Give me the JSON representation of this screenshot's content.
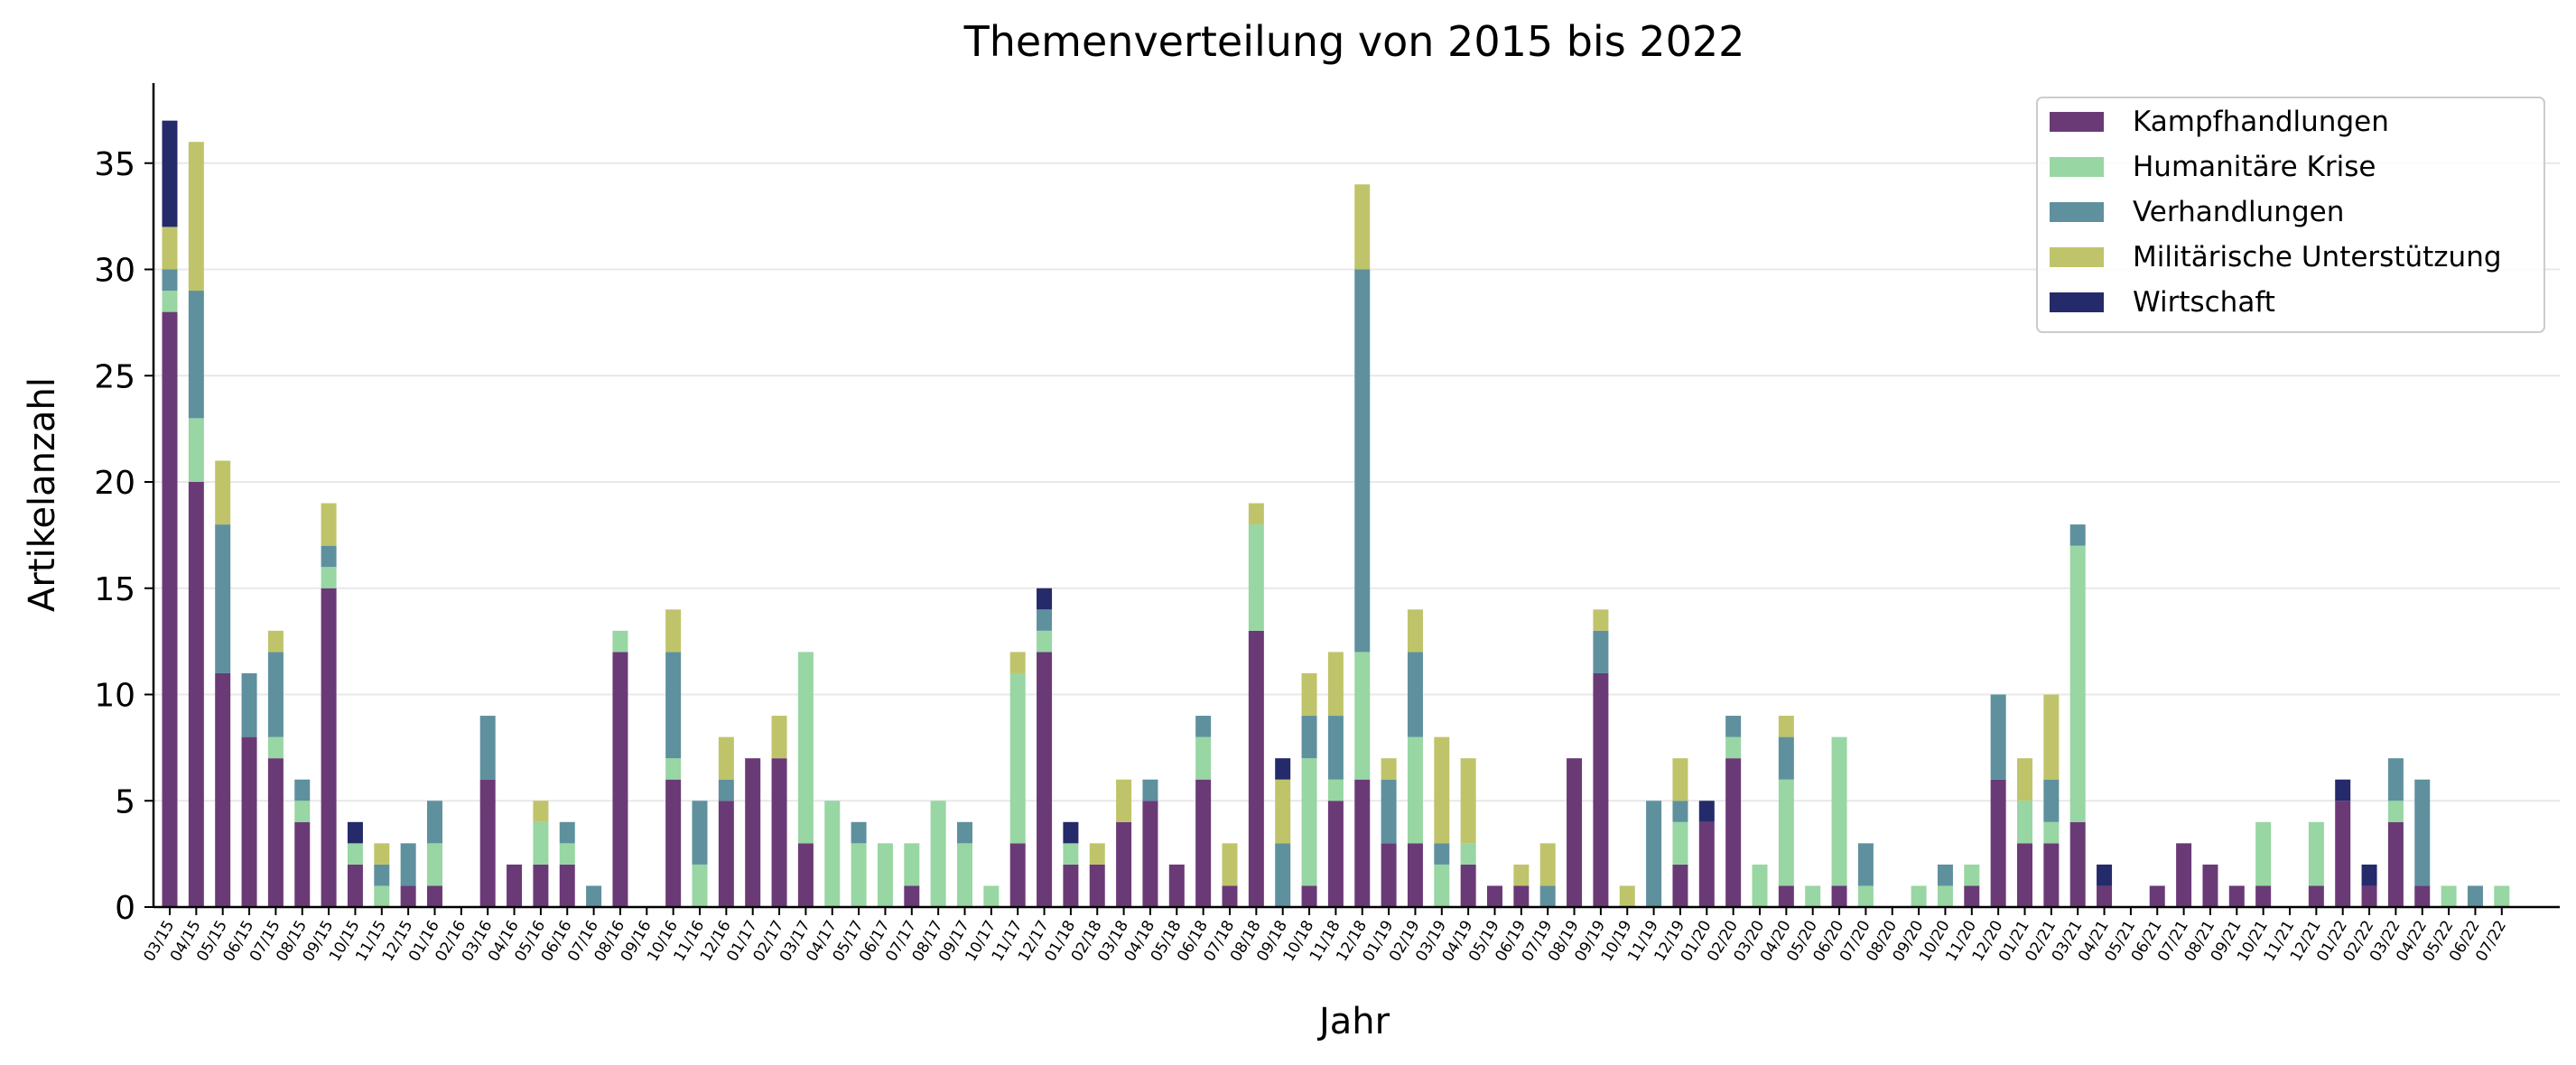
{
  "chart_data": {
    "type": "bar",
    "stacked": true,
    "title": "Themenverteilung von 2015 bis 2022",
    "xlabel": "Jahr",
    "ylabel": "Artikelanzahl",
    "ylim": [
      0,
      39
    ],
    "yticks": [
      0,
      5,
      10,
      15,
      20,
      25,
      30,
      35
    ],
    "grid": "horizontal",
    "legend_position": "top-right",
    "categories": [
      "03/15",
      "04/15",
      "05/15",
      "06/15",
      "07/15",
      "08/15",
      "09/15",
      "10/15",
      "11/15",
      "12/15",
      "01/16",
      "02/16",
      "03/16",
      "04/16",
      "05/16",
      "06/16",
      "07/16",
      "08/16",
      "09/16",
      "10/16",
      "11/16",
      "12/16",
      "01/17",
      "02/17",
      "03/17",
      "04/17",
      "05/17",
      "06/17",
      "07/17",
      "08/17",
      "09/17",
      "10/17",
      "11/17",
      "12/17",
      "01/18",
      "02/18",
      "03/18",
      "04/18",
      "05/18",
      "06/18",
      "07/18",
      "08/18",
      "09/18",
      "10/18",
      "11/18",
      "12/18",
      "01/19",
      "02/19",
      "03/19",
      "04/19",
      "05/19",
      "06/19",
      "07/19",
      "08/19",
      "09/19",
      "10/19",
      "11/19",
      "12/19",
      "01/20",
      "02/20",
      "03/20",
      "04/20",
      "05/20",
      "06/20",
      "07/20",
      "08/20",
      "09/20",
      "10/20",
      "11/20",
      "12/20",
      "01/21",
      "02/21",
      "03/21",
      "04/21",
      "05/21",
      "06/21",
      "07/21",
      "08/21",
      "09/21",
      "10/21",
      "11/21",
      "12/21",
      "01/22",
      "02/22",
      "03/22",
      "04/22",
      "05/22",
      "06/22",
      "07/22"
    ],
    "series": [
      {
        "name": "Kampfhandlungen",
        "color": "#6a3a76",
        "values": [
          28,
          20,
          11,
          8,
          7,
          4,
          15,
          2,
          0,
          1,
          1,
          0,
          6,
          2,
          2,
          2,
          0,
          12,
          0,
          6,
          0,
          5,
          7,
          7,
          3,
          0,
          0,
          0,
          1,
          0,
          0,
          0,
          3,
          12,
          2,
          2,
          4,
          5,
          2,
          6,
          1,
          13,
          0,
          1,
          5,
          6,
          3,
          3,
          0,
          2,
          1,
          1,
          0,
          7,
          11,
          0,
          0,
          2,
          4,
          7,
          0,
          1,
          0,
          1,
          0,
          0,
          0,
          0,
          1,
          6,
          3,
          3,
          4,
          1,
          0,
          1,
          3,
          2,
          1,
          1,
          0,
          1,
          5,
          1,
          4,
          1,
          0,
          0,
          0
        ]
      },
      {
        "name": "Humanitäre Krise",
        "color": "#98d6a3",
        "values": [
          1,
          3,
          0,
          0,
          1,
          1,
          1,
          1,
          1,
          0,
          2,
          0,
          0,
          0,
          2,
          1,
          0,
          1,
          0,
          1,
          2,
          0,
          0,
          0,
          9,
          5,
          3,
          3,
          2,
          5,
          3,
          1,
          8,
          1,
          1,
          0,
          0,
          0,
          0,
          2,
          0,
          5,
          0,
          6,
          1,
          6,
          0,
          5,
          2,
          1,
          0,
          0,
          0,
          0,
          0,
          0,
          0,
          2,
          0,
          1,
          2,
          5,
          1,
          7,
          1,
          0,
          1,
          1,
          1,
          0,
          2,
          1,
          13,
          0,
          0,
          0,
          0,
          0,
          0,
          3,
          0,
          3,
          0,
          0,
          1,
          0,
          1,
          0,
          1
        ]
      },
      {
        "name": "Verhandlungen",
        "color": "#5f909e",
        "values": [
          1,
          6,
          7,
          3,
          4,
          1,
          1,
          0,
          1,
          2,
          2,
          0,
          3,
          0,
          0,
          1,
          1,
          0,
          0,
          5,
          3,
          1,
          0,
          0,
          0,
          0,
          1,
          0,
          0,
          0,
          1,
          0,
          0,
          1,
          0,
          0,
          0,
          1,
          0,
          1,
          0,
          0,
          3,
          2,
          3,
          18,
          3,
          4,
          1,
          0,
          0,
          0,
          1,
          0,
          2,
          0,
          5,
          1,
          0,
          1,
          0,
          2,
          0,
          0,
          2,
          0,
          0,
          1,
          0,
          4,
          0,
          2,
          1,
          0,
          0,
          0,
          0,
          0,
          0,
          0,
          0,
          0,
          0,
          0,
          2,
          5,
          0,
          1,
          0
        ]
      },
      {
        "name": "Militärische Unterstützung",
        "color": "#bfc46a",
        "values": [
          2,
          7,
          3,
          0,
          1,
          0,
          2,
          0,
          1,
          0,
          0,
          0,
          0,
          0,
          1,
          0,
          0,
          0,
          0,
          2,
          0,
          2,
          0,
          2,
          0,
          0,
          0,
          0,
          0,
          0,
          0,
          0,
          1,
          0,
          0,
          1,
          2,
          0,
          0,
          0,
          2,
          1,
          3,
          2,
          3,
          4,
          1,
          2,
          5,
          4,
          0,
          1,
          2,
          0,
          1,
          1,
          0,
          2,
          0,
          0,
          0,
          1,
          0,
          0,
          0,
          0,
          0,
          0,
          0,
          0,
          2,
          4,
          0,
          0,
          0,
          0,
          0,
          0,
          0,
          0,
          0,
          0,
          0,
          0,
          0,
          0,
          0,
          0,
          0
        ]
      },
      {
        "name": "Wirtschaft",
        "color": "#252a6a",
        "values": [
          5,
          0,
          0,
          0,
          0,
          0,
          0,
          1,
          0,
          0,
          0,
          0,
          0,
          0,
          0,
          0,
          0,
          0,
          0,
          0,
          0,
          0,
          0,
          0,
          0,
          0,
          0,
          0,
          0,
          0,
          0,
          0,
          0,
          1,
          1,
          0,
          0,
          0,
          0,
          0,
          0,
          0,
          1,
          0,
          0,
          0,
          0,
          0,
          0,
          0,
          0,
          0,
          0,
          0,
          0,
          0,
          0,
          0,
          1,
          0,
          0,
          0,
          0,
          0,
          0,
          0,
          0,
          0,
          0,
          0,
          0,
          0,
          0,
          1,
          0,
          0,
          0,
          0,
          0,
          0,
          0,
          0,
          1,
          1,
          0,
          0,
          0,
          0,
          0
        ]
      }
    ]
  }
}
